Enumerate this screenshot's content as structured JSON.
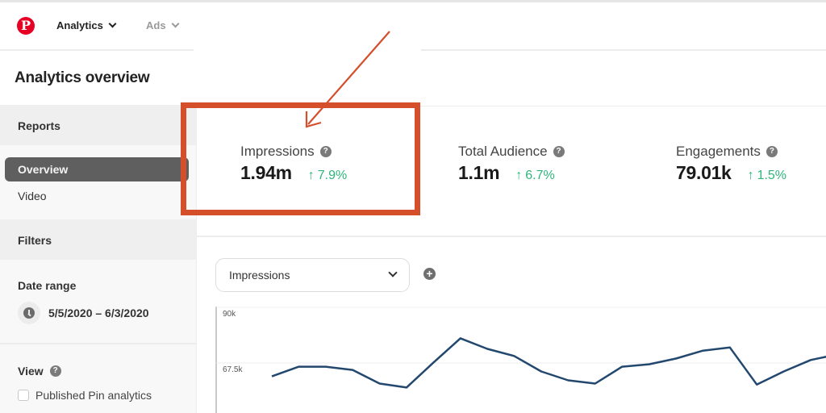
{
  "topbar": {
    "logo": "P",
    "nav": [
      {
        "label": "Analytics",
        "icon": "chevron-down-icon"
      },
      {
        "label": "Ads",
        "icon": "chevron-down-icon"
      }
    ]
  },
  "page": {
    "title": "Analytics overview"
  },
  "sidebar": {
    "reports_header": "Reports",
    "items": [
      {
        "label": "Overview",
        "selected": true
      },
      {
        "label": "Video",
        "selected": false
      }
    ],
    "filters_header": "Filters",
    "date_range_label": "Date range",
    "date_range_value": "5/5/2020 – 6/3/2020",
    "view_label": "View",
    "help_glyph": "?",
    "checkbox_label": "Published Pin analytics",
    "checkbox_checked": false
  },
  "metrics": [
    {
      "label": "Impressions",
      "value": "1.94m",
      "change": "7.9%",
      "direction": "up",
      "highlighted": true
    },
    {
      "label": "Total Audience",
      "value": "1.1m",
      "change": "6.7%",
      "direction": "up"
    },
    {
      "label": "Engagements",
      "value": "79.01k",
      "change": "1.5%",
      "direction": "up"
    }
  ],
  "chart_controls": {
    "selected_metric": "Impressions",
    "add_glyph": "+"
  },
  "colors": {
    "brand": "#e60023",
    "positive": "#2fb57b",
    "annotation": "#d44f2a",
    "line": "#23486e",
    "selected_item": "#5f5f5f"
  },
  "chart_data": {
    "type": "line",
    "title": "Impressions",
    "xlabel": "",
    "ylabel": "",
    "y_ticks": [
      "90k",
      "67.5k"
    ],
    "ylim": [
      45000,
      90000
    ],
    "grid": true,
    "series": [
      {
        "name": "Impressions",
        "values": [
          64700,
          68600,
          68600,
          67300,
          61800,
          60200,
          70300,
          80100,
          75800,
          72900,
          66700,
          63100,
          61800,
          68600,
          69600,
          71900,
          75100,
          76400,
          61400,
          66700,
          71300,
          73600
        ]
      }
    ]
  }
}
